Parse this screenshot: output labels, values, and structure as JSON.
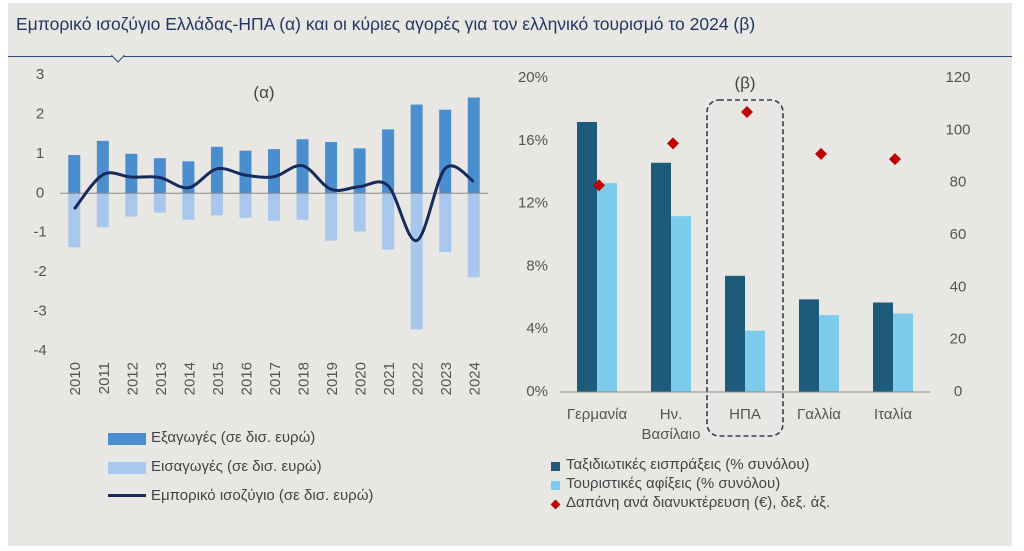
{
  "title": "Εμπορικό ισοζύγιο Ελλάδας-ΗΠΑ (α) και οι κύριες αγορές για τον ελληνικό τουρισμό το 2024 (β)",
  "colors": {
    "exports": "#4a8ed0",
    "imports": "#a7c8ec",
    "balance": "#162a5c",
    "receipts": "#1c5b7c",
    "arrivals": "#7ccbec",
    "spending": "#c00000",
    "axis_text": "#555555",
    "frame_bg": "#e9e7e3"
  },
  "chart_data": [
    {
      "type": "bar",
      "panel_label": "(α)",
      "categories": [
        "2010",
        "2011",
        "2012",
        "2013",
        "2014",
        "2015",
        "2016",
        "2017",
        "2018",
        "2019",
        "2020",
        "2021",
        "2022",
        "2023",
        "2024"
      ],
      "ylim": [
        -4,
        3
      ],
      "yticks": [
        "-4",
        "-3",
        "-2",
        "-1",
        "0",
        "1",
        "2",
        "3"
      ],
      "grid": false,
      "legend_position": "bottom",
      "series": [
        {
          "name": "Εξαγωγές (σε δισ. ευρώ)",
          "kind": "bar",
          "values": [
            0.97,
            1.33,
            1.0,
            0.89,
            0.81,
            1.18,
            1.08,
            1.12,
            1.37,
            1.3,
            1.14,
            1.62,
            2.25,
            2.12,
            2.43
          ]
        },
        {
          "name": "Εισαγωγές (σε δισ. ευρώ)",
          "kind": "bar",
          "values": [
            -1.37,
            -0.86,
            -0.59,
            -0.49,
            -0.67,
            -0.56,
            -0.62,
            -0.7,
            -0.67,
            -1.2,
            -0.97,
            -1.43,
            -3.45,
            -1.49,
            -2.13
          ]
        },
        {
          "name": "Εμπορικό ισοζύγιο (σε δισ. ευρώ)",
          "kind": "line",
          "values": [
            -0.4,
            0.47,
            0.41,
            0.4,
            0.14,
            0.62,
            0.46,
            0.42,
            0.7,
            0.1,
            0.17,
            0.19,
            -1.2,
            0.63,
            0.3
          ]
        }
      ]
    },
    {
      "type": "bar",
      "panel_label": "(β)",
      "categories": [
        "Γερμανία",
        "Ην. Βασίλαιο",
        "ΗΠΑ",
        "Γαλλία",
        "Ιταλία"
      ],
      "highlighted_category": "ΗΠΑ",
      "ylim": [
        0,
        20
      ],
      "yticks": [
        "0%",
        "4%",
        "8%",
        "12%",
        "16%",
        "20%"
      ],
      "y2lim": [
        0,
        120
      ],
      "y2ticks": [
        "0",
        "20",
        "40",
        "60",
        "80",
        "100",
        "120"
      ],
      "grid": false,
      "legend_position": "bottom",
      "series": [
        {
          "name": "Ταξιδιωτικές εισπράξεις (% συνόλου)",
          "kind": "bar",
          "axis": "left",
          "values": [
            17.2,
            14.6,
            7.4,
            5.9,
            5.7
          ]
        },
        {
          "name": "Τουριστικές αφίξεις (% συνόλου)",
          "kind": "bar",
          "axis": "left",
          "values": [
            13.3,
            11.2,
            3.9,
            4.9,
            5.0
          ]
        },
        {
          "name": "Δαπάνη ανά διανυκτέρευση (€), δεξ. άξ.",
          "kind": "marker",
          "axis": "right",
          "values": [
            79,
            95,
            107,
            91,
            89
          ]
        }
      ]
    }
  ]
}
